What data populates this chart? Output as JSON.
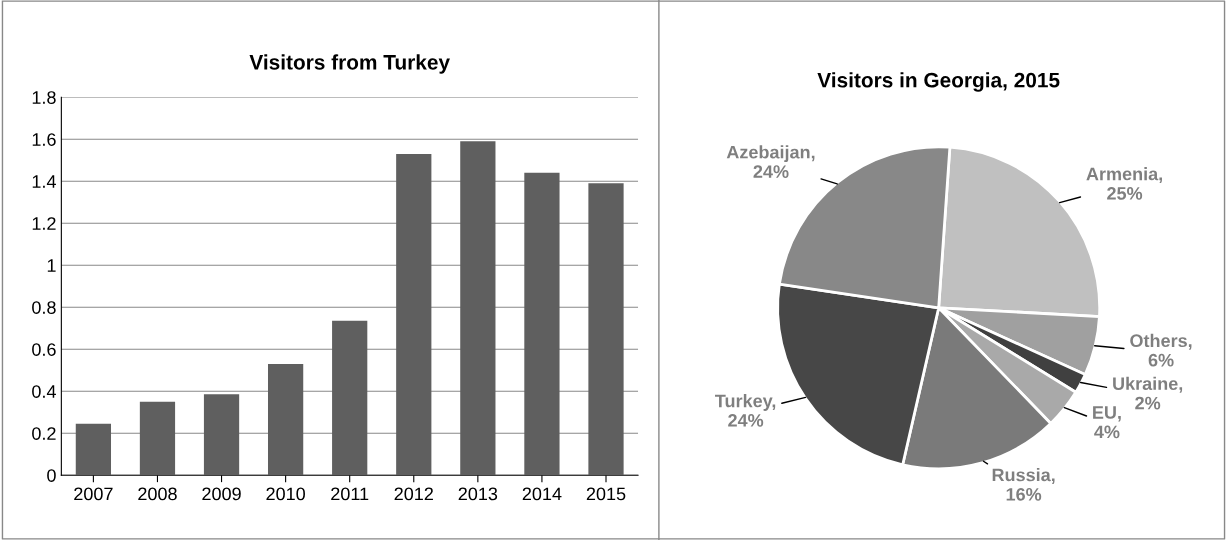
{
  "chart_data": [
    {
      "type": "bar",
      "title": "Visitors from Turkey",
      "categories": [
        "2007",
        "2008",
        "2009",
        "2010",
        "2011",
        "2012",
        "2013",
        "2014",
        "2015"
      ],
      "values": [
        0.245,
        0.35,
        0.385,
        0.53,
        0.735,
        1.53,
        1.59,
        1.44,
        1.39
      ],
      "color": "#5f5f5f",
      "ylim": [
        0,
        1.8
      ],
      "yticks": [
        0,
        0.2,
        0.4,
        0.6,
        0.8,
        1,
        1.2,
        1.4,
        1.6,
        1.8
      ],
      "grid": "y"
    },
    {
      "type": "pie",
      "title": "Visitors in Georgia, 2015",
      "categories": [
        "Armenia",
        "Others",
        "Ukraine",
        "EU",
        "Russia",
        "Turkey",
        "Azebaijan"
      ],
      "values": [
        25,
        6,
        2,
        4,
        16,
        24,
        24
      ],
      "colors": [
        "#c0c0c0",
        "#a0a0a0",
        "#404040",
        "#a9a9a9",
        "#7a7a7a",
        "#474747",
        "#888888"
      ],
      "value_labels": [
        ", 25%",
        ", 6%",
        ", 2%",
        ", 4%",
        ", 16%",
        ", 24%",
        ", 24%"
      ]
    }
  ]
}
